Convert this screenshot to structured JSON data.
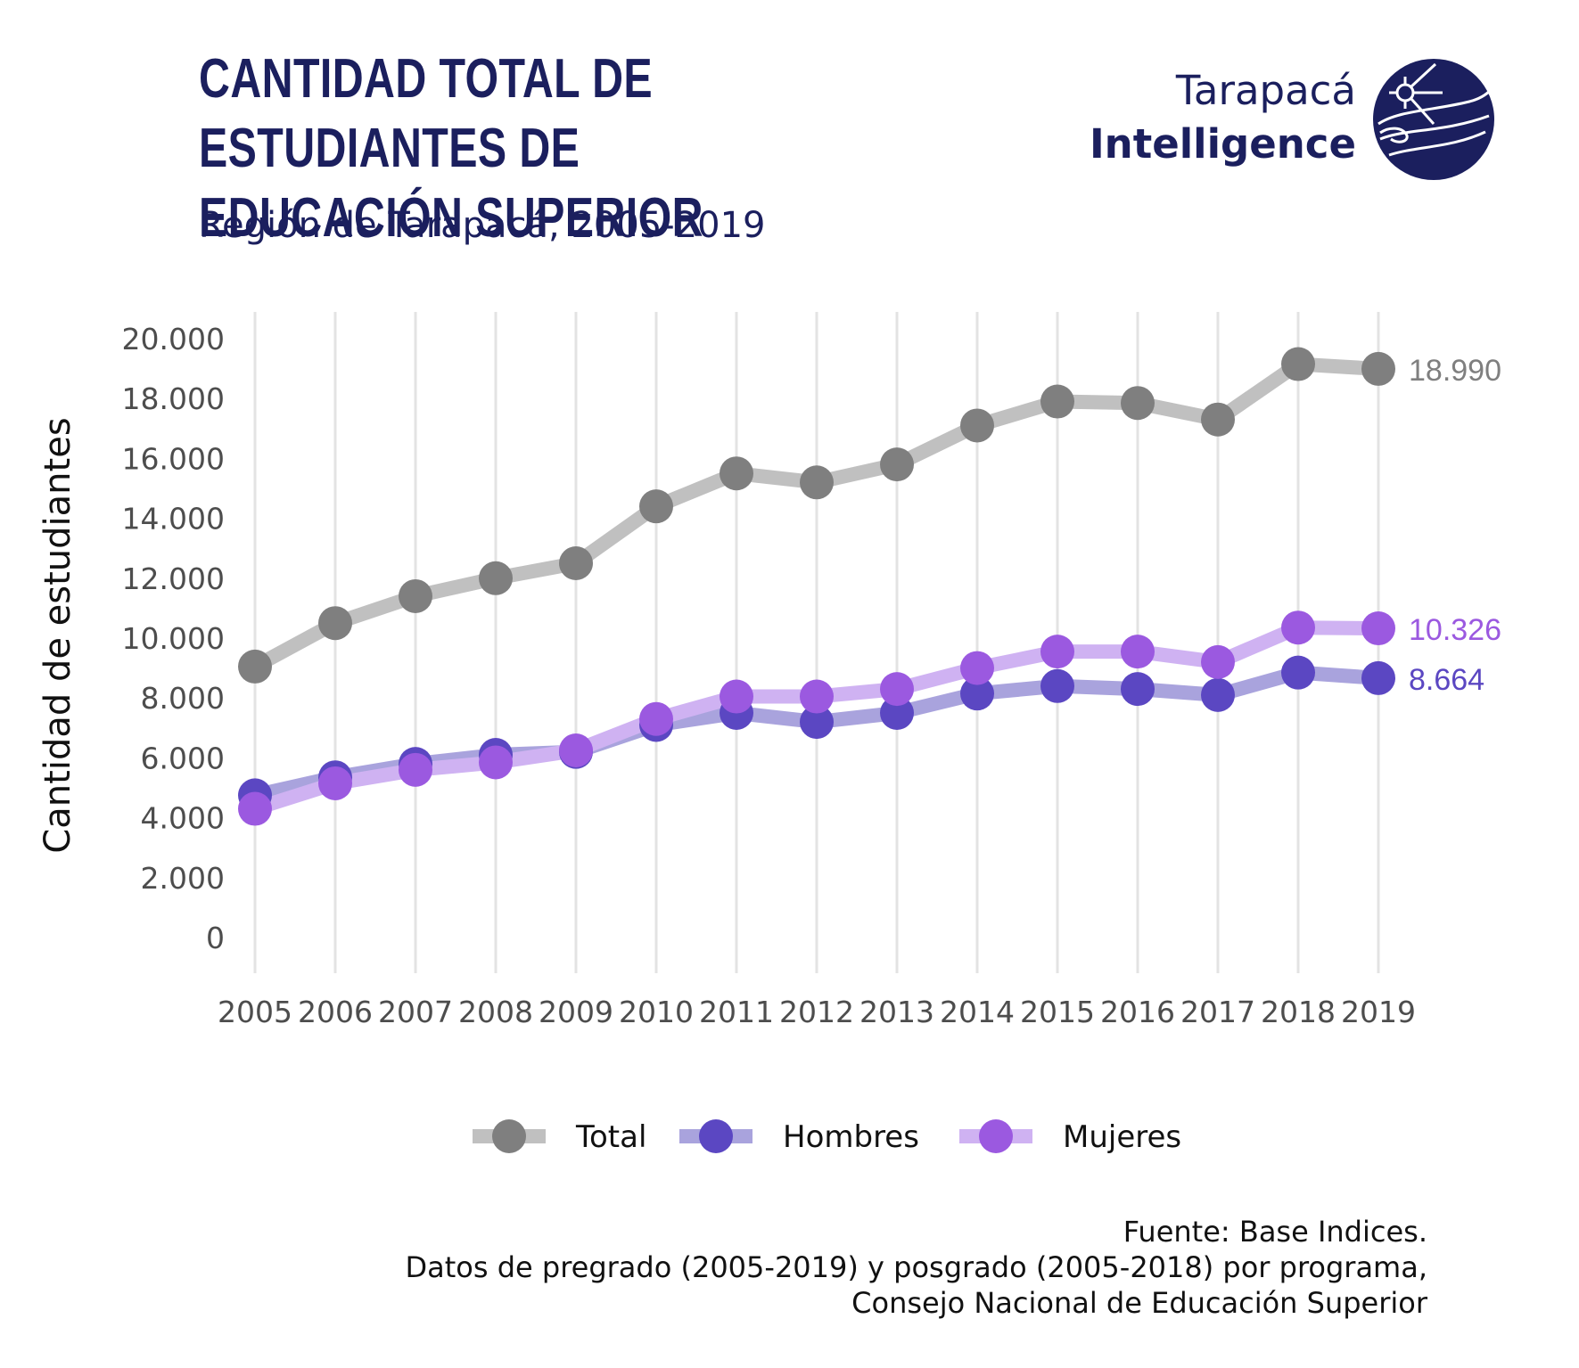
{
  "header": {
    "title_line1": "CANTIDAD TOTAL DE ESTUDIANTES DE",
    "title_line2": "EDUCACIÓN SUPERIOR",
    "subtitle": "Región de Tarapacá, 2005-2019"
  },
  "logo": {
    "line1": "Tarapacá",
    "line2": "Intelligence",
    "icon": "globe-logo-icon",
    "color": "#1b1f5e"
  },
  "footer": {
    "line1": "Fuente: Base Indices.",
    "line2": "Datos de pregrado (2005-2019) y posgrado (2005-2018) por programa,",
    "line3": "Consejo Nacional de Educación Superior"
  },
  "chart_data": {
    "type": "line",
    "ylabel": "Cantidad de estudiantes",
    "xlabel": "",
    "ylim": [
      0,
      20000
    ],
    "yticks": [
      0,
      2000,
      4000,
      6000,
      8000,
      10000,
      12000,
      14000,
      16000,
      18000,
      20000
    ],
    "ytick_labels": [
      "0",
      "2.000",
      "4.000",
      "6.000",
      "8.000",
      "10.000",
      "12.000",
      "14.000",
      "16.000",
      "18.000",
      "20.000"
    ],
    "x": [
      "2005",
      "2006",
      "2007",
      "2008",
      "2009",
      "2010",
      "2011",
      "2012",
      "2013",
      "2014",
      "2015",
      "2016",
      "2017",
      "2018",
      "2019"
    ],
    "grid": "vertical",
    "legend_position": "bottom",
    "series": [
      {
        "name": "Total",
        "line_color": "#c0c0c0",
        "point_color": "#7f7f7f",
        "end_label": "18.990",
        "label_color": "#7f7f7f",
        "values": [
          9050,
          10500,
          11400,
          12000,
          12500,
          14400,
          15500,
          15200,
          15800,
          17100,
          17900,
          17850,
          17300,
          19150,
          18990
        ]
      },
      {
        "name": "Hombres",
        "line_color": "#a9a3dd",
        "point_color": "#5b47c2",
        "end_label": "8.664",
        "label_color": "#5b47c2",
        "values": [
          4750,
          5350,
          5800,
          6100,
          6200,
          7100,
          7500,
          7200,
          7500,
          8150,
          8400,
          8300,
          8100,
          8850,
          8664
        ]
      },
      {
        "name": "Mujeres",
        "line_color": "#cfb2f2",
        "point_color": "#9b59e0",
        "end_label": "10.326",
        "label_color": "#9b59e0",
        "values": [
          4300,
          5150,
          5600,
          5850,
          6250,
          7300,
          8050,
          8050,
          8300,
          9000,
          9550,
          9550,
          9200,
          10350,
          10326
        ]
      }
    ]
  }
}
